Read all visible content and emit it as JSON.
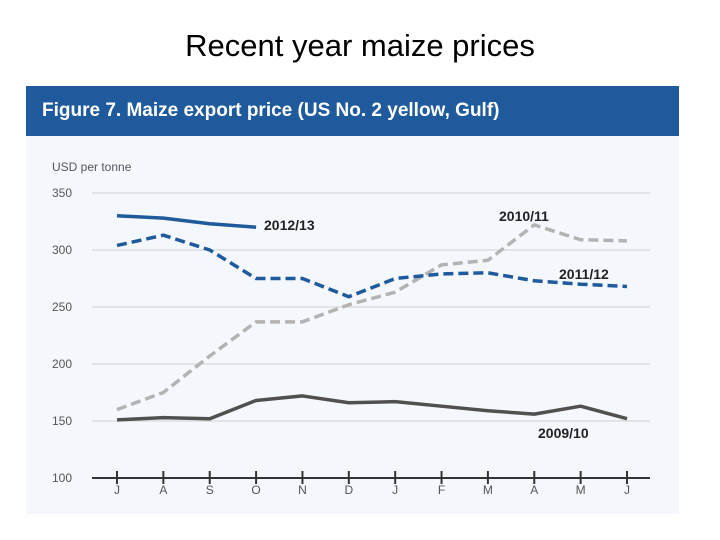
{
  "slide": {
    "title": "Recent year maize prices"
  },
  "figure": {
    "header": "Figure 7. Maize export price (US No. 2 yellow, Gulf)"
  },
  "chart_data": {
    "type": "line",
    "title": "Figure 7. Maize export price (US No. 2 yellow, Gulf)",
    "ylabel": "USD per tonne",
    "xlabel": "",
    "categories": [
      "J",
      "A",
      "S",
      "O",
      "N",
      "D",
      "J",
      "F",
      "M",
      "A",
      "M",
      "J"
    ],
    "ylim": [
      100,
      350
    ],
    "yticks": [
      100,
      150,
      200,
      250,
      300,
      350
    ],
    "grid": true,
    "series": [
      {
        "name": "2012/13",
        "color": "#1f5a9d",
        "style": "solid",
        "values": [
          330,
          328,
          323,
          320,
          null,
          null,
          null,
          null,
          null,
          null,
          null,
          null
        ]
      },
      {
        "name": "2011/12",
        "color": "#1f5a9d",
        "style": "dashed",
        "values": [
          304,
          313,
          300,
          275,
          275,
          259,
          275,
          279,
          280,
          273,
          270,
          268
        ]
      },
      {
        "name": "2010/11",
        "color": "#b3b3b3",
        "style": "dashed",
        "values": [
          160,
          175,
          207,
          237,
          237,
          252,
          263,
          287,
          291,
          322,
          309,
          308
        ]
      },
      {
        "name": "2009/10",
        "color": "#505050",
        "style": "solid",
        "values": [
          151,
          153,
          152,
          168,
          172,
          166,
          167,
          163,
          159,
          156,
          163,
          152
        ]
      }
    ]
  }
}
